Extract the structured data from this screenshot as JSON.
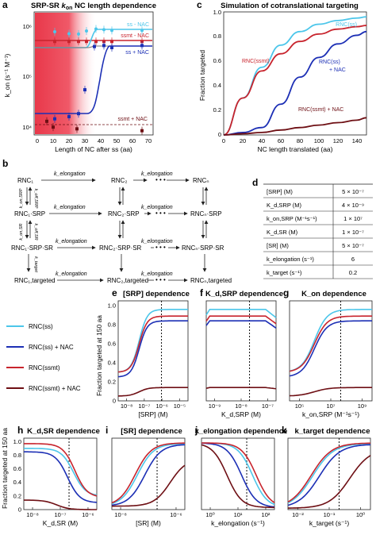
{
  "panels": {
    "a": {
      "label": "a",
      "title": "SRP-SR k_on NC length dependence",
      "ylabel": "k_on (s⁻¹ M⁻¹)",
      "xlabel": "Length of NC after ss (aa)",
      "xticks": [
        "0",
        "10",
        "20",
        "30",
        "40",
        "50",
        "60",
        "70"
      ],
      "yticks": [
        "10⁴",
        "10⁵",
        "10⁶"
      ],
      "legend": [
        "ss - NAC",
        "ssmt - NAC",
        "ss + NAC",
        "ssmt + NAC"
      ]
    },
    "b": {
      "label": "b",
      "row1": [
        "RNC₁",
        "RNC₂",
        "RNCₙ"
      ],
      "row2": [
        "RNC₁·SRP",
        "RNC₂·SRP",
        "RNCₙ·SRP"
      ],
      "row3": [
        "RNC₁·SRP·SR",
        "RNC₂·SRP·SR",
        "RNCₙ·SRP·SR"
      ],
      "row4": [
        "RNC₁,targeted",
        "RNC₂,targeted",
        "RNCₙ,targeted"
      ],
      "k_elong": "k_elongation",
      "k_target": "k_target",
      "k_on_srp": "k_on,SRP",
      "k_off_srp": "k_off,SRP",
      "k_on_sr": "k_on,SR",
      "k_off_sr": "k_off,SR",
      "dots": "• • •"
    },
    "c": {
      "label": "c",
      "title": "Simulation of cotranslational targeting",
      "ylabel": "Fraction targeted",
      "xlabel": "NC length translated (aa)",
      "xticks": [
        "0",
        "20",
        "40",
        "60",
        "80",
        "100",
        "120",
        "140"
      ],
      "yticks": [
        "0",
        "0.2",
        "0.4",
        "0.6",
        "0.8",
        "1.0"
      ],
      "curve_labels": [
        "RNC(ss)",
        "RNC(ssmt)",
        "RNC(ss) + NAC",
        "RNC(ssmt) + NAC"
      ]
    },
    "d": {
      "label": "d",
      "rows": [
        {
          "param": "[SRP] (M)",
          "value": "5 × 10⁻⁷"
        },
        {
          "param": "K_d,SRP (M)",
          "value": "4 × 10⁻⁹"
        },
        {
          "param": "k_on,SRP (M⁻¹s⁻¹)",
          "value": "1 × 10⁷"
        },
        {
          "param": "K_d,SR (M)",
          "value": "1 × 10⁻⁷"
        },
        {
          "param": "[SR] (M)",
          "value": "5 × 10⁻⁷"
        },
        {
          "param": "k_elongation (s⁻¹)",
          "value": "6"
        },
        {
          "param": "k_target (s⁻¹)",
          "value": "0.2"
        }
      ]
    },
    "legend": {
      "items": [
        "RNC(ss)",
        "RNC(ss) + NAC",
        "RNC(ssmt)",
        "RNC(ssmt) + NAC"
      ]
    },
    "e": {
      "label": "e",
      "title": "[SRP] dependence",
      "xlabel": "[SRP]  (M)",
      "xticks": [
        "10⁻⁸",
        "10⁻⁷",
        "10⁻⁶",
        "10⁻⁵"
      ]
    },
    "f": {
      "label": "f",
      "title": "K_d,SRP dependence",
      "xlabel": "K_d,SRP (M)",
      "xticks": [
        "10⁻⁹",
        "10⁻⁸",
        "10⁻⁷"
      ]
    },
    "g": {
      "label": "g",
      "title": "K_on dependence",
      "xlabel": "k_on,SRP (M⁻¹s⁻¹)",
      "xticks": [
        "10⁵",
        "10⁷",
        "10⁹"
      ]
    },
    "h": {
      "label": "h",
      "title": "K_d,SR dependence",
      "xlabel": "K_d,SR (M)",
      "xticks": [
        "10⁻⁸",
        "10⁻⁷",
        "10⁻⁶"
      ]
    },
    "i": {
      "label": "i",
      "title": "[SR] dependence",
      "xlabel": "[SR]  (M)",
      "xticks": [
        "10⁻⁸",
        "10⁻⁶"
      ]
    },
    "j": {
      "label": "j",
      "title": "k_elongation dependence",
      "xlabel": "k_elongation (s⁻¹)",
      "xticks": [
        "10⁰",
        "10¹",
        "10²"
      ]
    },
    "k": {
      "label": "k",
      "title": "k_target dependence",
      "xlabel": "k_target (s⁻¹)",
      "xticks": [
        "10⁻²",
        "10⁻¹",
        "10⁰"
      ]
    },
    "efg_ylabel": "Fraction targeted at 150 aa",
    "hk_ylabel": "Fraction targeted at 150 aa",
    "frac_ticks": [
      "0",
      "0.2",
      "0.4",
      "0.6",
      "0.8",
      "1.0"
    ]
  },
  "colors": {
    "ss": "#4cc6ea",
    "ss_nac": "#1c2fb5",
    "ssmt": "#c8242d",
    "ssmt_nac": "#6e0f14",
    "red_zone": "#e8384a"
  },
  "chart_data": [
    {
      "type": "scatter",
      "panel": "a",
      "xlabel": "Length of NC after ss (aa)",
      "ylabel": "k_on (s⁻¹ M⁻¹)",
      "log_y": true,
      "ylim": [
        10000,
        2000000
      ],
      "xlim": [
        0,
        75
      ],
      "series": [
        {
          "name": "ss - NAC",
          "x": [
            13,
            22,
            28,
            33,
            39,
            44,
            49,
            68
          ],
          "y": [
            850000,
            780000,
            770000,
            880000,
            960000,
            930000,
            900000,
            900000
          ]
        },
        {
          "name": "ssmt - NAC",
          "x": [
            13,
            22,
            28,
            33,
            39,
            44,
            49,
            68
          ],
          "y": [
            560000,
            560000,
            560000,
            560000,
            560000,
            560000,
            560000,
            560000
          ]
        },
        {
          "name": "ss + NAC",
          "x": [
            13,
            22,
            28,
            32,
            38,
            44,
            49,
            68
          ],
          "y": [
            20000,
            22000,
            25000,
            70000,
            450000,
            470000,
            430000,
            470000
          ]
        },
        {
          "name": "ssmt + NAC",
          "x": [
            8,
            12,
            27,
            68
          ],
          "y": [
            18000,
            14000,
            13000,
            12000
          ]
        }
      ]
    },
    {
      "type": "line",
      "panel": "c",
      "xlabel": "NC length translated (aa)",
      "ylabel": "Fraction targeted",
      "xlim": [
        0,
        150
      ],
      "ylim": [
        0,
        1
      ],
      "series": [
        {
          "name": "RNC(ss)",
          "x": [
            0,
            20,
            40,
            60,
            80,
            100,
            120,
            140,
            150
          ],
          "y": [
            0,
            0.3,
            0.55,
            0.73,
            0.84,
            0.9,
            0.93,
            0.95,
            0.96
          ]
        },
        {
          "name": "RNC(ssmt)",
          "x": [
            0,
            20,
            40,
            60,
            80,
            100,
            120,
            140,
            150
          ],
          "y": [
            0,
            0.3,
            0.52,
            0.66,
            0.76,
            0.82,
            0.86,
            0.88,
            0.89
          ]
        },
        {
          "name": "RNC(ss) + NAC",
          "x": [
            0,
            20,
            40,
            60,
            80,
            100,
            120,
            140,
            150
          ],
          "y": [
            0,
            0.02,
            0.06,
            0.25,
            0.47,
            0.63,
            0.74,
            0.81,
            0.84
          ]
        },
        {
          "name": "RNC(ssmt) + NAC",
          "x": [
            0,
            20,
            40,
            60,
            80,
            100,
            120,
            140,
            150
          ],
          "y": [
            0,
            0.01,
            0.02,
            0.04,
            0.06,
            0.08,
            0.1,
            0.12,
            0.14
          ]
        }
      ]
    },
    {
      "type": "line",
      "panel": "e",
      "xlabel": "[SRP] (M)",
      "ylabel": "Fraction targeted at 150 aa",
      "log_x": true,
      "xlim": [
        -8.5,
        -4.5
      ],
      "ylim": [
        0,
        1.05
      ],
      "x": [
        -8.5,
        -8,
        -7.5,
        -7,
        -6.5,
        -6,
        -5.5,
        -5,
        -4.5
      ],
      "series": [
        {
          "name": "RNC(ss)",
          "y": [
            0.62,
            0.88,
            0.95,
            0.96,
            0.96,
            0.96,
            0.96,
            0.96,
            0.96
          ]
        },
        {
          "name": "RNC(ss) + NAC",
          "y": [
            0.35,
            0.68,
            0.8,
            0.83,
            0.84,
            0.84,
            0.84,
            0.84,
            0.84
          ]
        },
        {
          "name": "RNC(ssmt)",
          "y": [
            0.55,
            0.82,
            0.88,
            0.89,
            0.89,
            0.89,
            0.89,
            0.89,
            0.89
          ]
        },
        {
          "name": "RNC(ssmt) + NAC",
          "y": [
            0.06,
            0.11,
            0.13,
            0.14,
            0.14,
            0.14,
            0.14,
            0.14,
            0.14
          ]
        }
      ]
    }
  ]
}
